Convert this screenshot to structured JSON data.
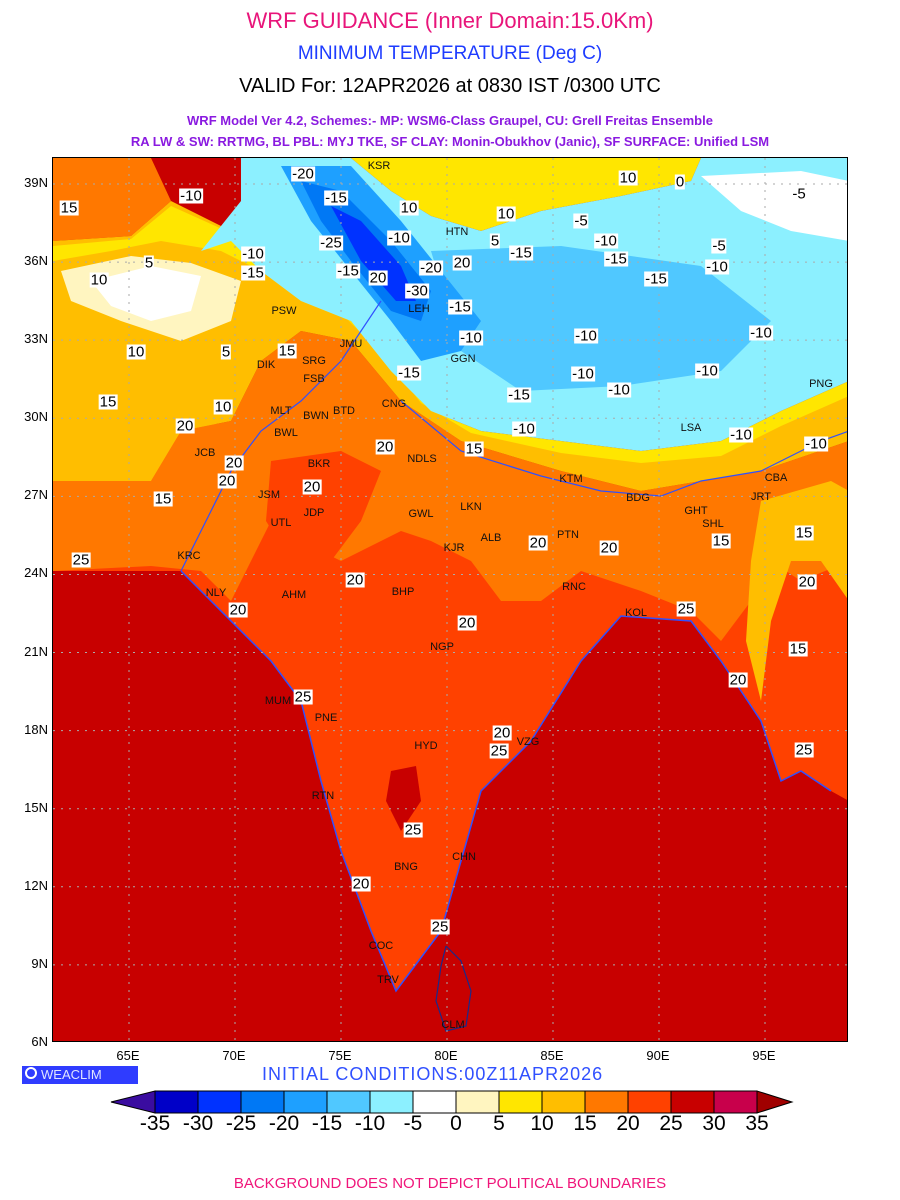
{
  "header": {
    "title": "WRF GUIDANCE (Inner Domain:15.0Km)",
    "variable": "MINIMUM TEMPERATURE (Deg C)",
    "valid": "VALID For: 12APR2026 at 0830 IST /0300 UTC",
    "model_line1": "WRF Model Ver 4.2, Schemes:- MP: WSM6-Class Graupel, CU: Grell Freitas Ensemble",
    "model_line2": "RA LW & SW: RRTMG, BL PBL: MYJ TKE, SF CLAY: Monin-Obukhov (Janic), SF SURFACE: Unified LSM"
  },
  "axes": {
    "lat_labels": [
      "39N",
      "36N",
      "33N",
      "30N",
      "27N",
      "24N",
      "21N",
      "18N",
      "15N",
      "12N",
      "9N",
      "6N"
    ],
    "lon_labels": [
      "65E",
      "70E",
      "75E",
      "80E",
      "85E",
      "90E",
      "95E"
    ]
  },
  "cities": [
    "KSR",
    "HTN",
    "PSW",
    "SRG",
    "DIK",
    "FSB",
    "JMU",
    "LEH",
    "GGN",
    "BTD",
    "MLT",
    "BWN",
    "BWL",
    "CNG",
    "NDLS",
    "BKR",
    "JCB",
    "JSM",
    "JDP",
    "UTL",
    "KRC",
    "LKN",
    "GWL",
    "ALB",
    "KJR",
    "PTN",
    "RNC",
    "KOL",
    "BDG",
    "KTM",
    "GHT",
    "SHL",
    "JRT",
    "CBA",
    "NLY",
    "AHM",
    "BHP",
    "NGP",
    "MUM",
    "PNE",
    "HYD",
    "VZG",
    "RTN",
    "CHN",
    "BNG",
    "COC",
    "TRV",
    "CLM",
    "LSA",
    "PNG"
  ],
  "contour_labels": [
    "-20",
    "-15",
    "-10",
    "15",
    "10",
    "10",
    "10",
    "0",
    "-5",
    "-25",
    "-10",
    "5",
    "-15",
    "-5",
    "-10",
    "-15",
    "-5",
    "-10",
    "-15",
    "-10",
    "-15",
    "10",
    "5",
    "-15",
    "20",
    "-20",
    "20",
    "-30",
    "-15",
    "-10",
    "-10",
    "-10",
    "10",
    "5",
    "15",
    "-15",
    "-10",
    "-10",
    "-10",
    "-15",
    "15",
    "10",
    "20",
    "-10",
    "15",
    "-10",
    "-10",
    "20",
    "20",
    "20",
    "15",
    "20",
    "25",
    "20",
    "20",
    "15",
    "15",
    "20",
    "20",
    "25",
    "20",
    "20",
    "15",
    "20",
    "25",
    "20",
    "25",
    "25",
    "25",
    "20",
    "25"
  ],
  "footer": {
    "logo": "WEACLIM",
    "initial_conditions": "INITIAL CONDITIONS:00Z11APR2026",
    "disclaimer": "BACKGROUND DOES NOT DEPICT POLITICAL BOUNDARIES"
  },
  "legend": {
    "unit": "Deg C",
    "labels": [
      "-35",
      "-30",
      "-25",
      "-20",
      "-15",
      "-10",
      "-5",
      "0",
      "5",
      "10",
      "15",
      "20",
      "25",
      "30",
      "35"
    ],
    "colors": [
      "#3a0ca0",
      "#0000c8",
      "#0032ff",
      "#0078f5",
      "#1ea0ff",
      "#50c8ff",
      "#8cf0ff",
      "#ffffff",
      "#fff5c0",
      "#ffe600",
      "#ffbe00",
      "#ff7800",
      "#ff4100",
      "#c80000",
      "#c8004b",
      "#a00000"
    ]
  }
}
